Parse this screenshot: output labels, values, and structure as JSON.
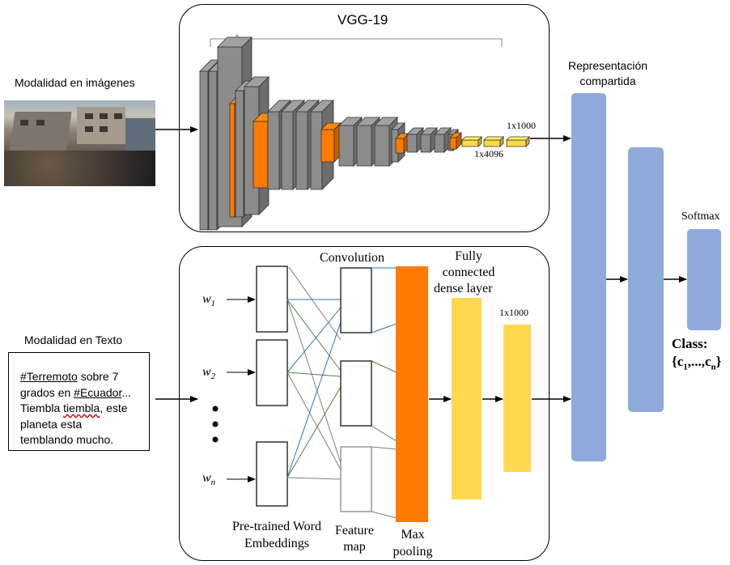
{
  "vgg": {
    "title": "VGG-19",
    "fc_4096_label": "1x4096",
    "fc_1000_label": "1x1000"
  },
  "image_modality": {
    "label": "Modalidad en imágenes"
  },
  "text_modality": {
    "label": "Modalidad en Texto",
    "tweet": {
      "hashtag1": "#Terremoto",
      "after_hashtag1": " sobre 7",
      "line2_prefix": "grados en ",
      "hashtag2": "#Ecuador",
      "line2_suffix": "...",
      "line3_prefix": "Tiembla ",
      "misspelled": "tiembla",
      "line3_suffix": ", este",
      "line4": "planeta esta",
      "line5": "temblando mucho."
    }
  },
  "text_cnn": {
    "word_w1": "w",
    "word_w1_sub": "1",
    "word_w2": "w",
    "word_w2_sub": "2",
    "word_wn": "w",
    "word_wn_sub": "n",
    "convolution": "Convolution",
    "fully_connected_l1": "Fully",
    "fully_connected_l2": "connected",
    "fully_connected_l3": "dense layer",
    "fc_1000_label": "1x1000",
    "embeddings_l1": "Pre-trained Word",
    "embeddings_l2": "Embeddings",
    "feature_map_l1": "Feature",
    "feature_map_l2": "map",
    "max_pooling_l1": "Max",
    "max_pooling_l2": "pooling"
  },
  "fusion": {
    "shared_repr_l1": "Representación",
    "shared_repr_l2": "compartida",
    "softmax": "Softmax",
    "class_l1": "Class:",
    "class_l2_prefix": "{c",
    "class_l2_sub1": "1",
    "class_l2_mid": ",...,c",
    "class_l2_subn": "n",
    "class_l2_suffix": "}"
  },
  "colors": {
    "orange": "#ff7a00",
    "gray_layer": "#8c8c8c",
    "yellow": "#ffd84d",
    "blue_bar": "#8eaadb",
    "line_blue": "#2e75b6",
    "line_green": "#548235",
    "line_gray": "#7f7f7f"
  }
}
